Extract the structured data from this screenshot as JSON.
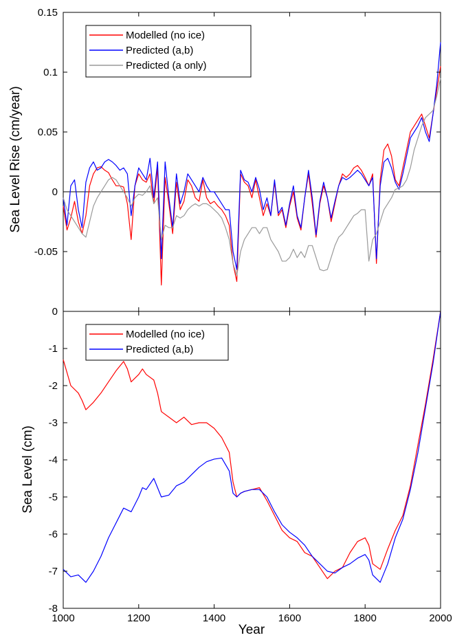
{
  "figure": {
    "xlabel": "Year",
    "x_ticks": [
      "1000",
      "1200",
      "1400",
      "1600",
      "1800",
      "2000"
    ]
  },
  "chart_data": [
    {
      "type": "line",
      "ylabel": "Sea Level Rise (cm/year)",
      "xlim": [
        1000,
        2000
      ],
      "ylim": [
        -0.1,
        0.15
      ],
      "y_ticks": [
        "-0.05",
        "0",
        "0.05",
        "0.1",
        "0.15"
      ],
      "y_tick_values": [
        -0.05,
        0,
        0.05,
        0.1,
        0.15
      ],
      "reference_line": 0,
      "legend_position": "top-left",
      "grid": false,
      "series": [
        {
          "name": "Modelled (no ice)",
          "color": "#ff0000",
          "x": [
            1000,
            1010,
            1020,
            1030,
            1040,
            1050,
            1060,
            1070,
            1080,
            1090,
            1100,
            1110,
            1120,
            1130,
            1140,
            1150,
            1160,
            1170,
            1180,
            1190,
            1200,
            1210,
            1220,
            1230,
            1240,
            1250,
            1260,
            1270,
            1280,
            1290,
            1300,
            1310,
            1320,
            1330,
            1340,
            1350,
            1360,
            1370,
            1380,
            1390,
            1400,
            1410,
            1420,
            1430,
            1440,
            1450,
            1460,
            1470,
            1480,
            1490,
            1500,
            1510,
            1520,
            1530,
            1540,
            1550,
            1560,
            1570,
            1580,
            1590,
            1600,
            1610,
            1620,
            1630,
            1640,
            1650,
            1660,
            1670,
            1680,
            1690,
            1700,
            1710,
            1720,
            1730,
            1740,
            1750,
            1760,
            1770,
            1780,
            1790,
            1800,
            1810,
            1820,
            1830,
            1840,
            1850,
            1860,
            1870,
            1880,
            1890,
            1900,
            1910,
            1920,
            1930,
            1940,
            1950,
            1960,
            1970,
            1980,
            1990,
            2000
          ],
          "values": [
            -0.012,
            -0.032,
            -0.022,
            -0.008,
            -0.025,
            -0.035,
            -0.02,
            0.005,
            0.015,
            0.02,
            0.021,
            0.018,
            0.016,
            0.01,
            0.005,
            0.005,
            0.004,
            -0.01,
            -0.04,
            0.005,
            0.015,
            0.01,
            0.008,
            0.015,
            -0.01,
            0.02,
            -0.078,
            0.012,
            -0.01,
            -0.035,
            0.008,
            -0.015,
            -0.008,
            0.01,
            0.005,
            -0.005,
            -0.008,
            0.01,
            -0.005,
            -0.01,
            -0.008,
            -0.012,
            -0.015,
            -0.02,
            -0.028,
            -0.06,
            -0.075,
            0.015,
            0.008,
            0.005,
            -0.005,
            0.01,
            -0.005,
            -0.02,
            -0.01,
            -0.02,
            0.008,
            -0.02,
            -0.015,
            -0.03,
            -0.012,
            0.0,
            -0.022,
            -0.032,
            -0.005,
            0.015,
            -0.01,
            -0.038,
            -0.01,
            0.005,
            -0.005,
            -0.025,
            -0.01,
            0.005,
            0.015,
            0.012,
            0.015,
            0.02,
            0.022,
            0.018,
            0.012,
            0.005,
            0.015,
            -0.06,
            0.01,
            0.035,
            0.04,
            0.03,
            0.01,
            0.005,
            0.02,
            0.035,
            0.05,
            0.055,
            0.06,
            0.065,
            0.055,
            0.045,
            0.065,
            0.085,
            0.105
          ]
        },
        {
          "name": "Predicted (a,b)",
          "color": "#0000ff",
          "x": [
            1000,
            1010,
            1020,
            1030,
            1040,
            1050,
            1060,
            1070,
            1080,
            1090,
            1100,
            1110,
            1120,
            1130,
            1140,
            1150,
            1160,
            1170,
            1180,
            1190,
            1200,
            1210,
            1220,
            1230,
            1240,
            1250,
            1260,
            1270,
            1280,
            1290,
            1300,
            1310,
            1320,
            1330,
            1340,
            1350,
            1360,
            1370,
            1380,
            1390,
            1400,
            1410,
            1420,
            1430,
            1440,
            1450,
            1460,
            1470,
            1480,
            1490,
            1500,
            1510,
            1520,
            1530,
            1540,
            1550,
            1560,
            1570,
            1580,
            1590,
            1600,
            1610,
            1620,
            1630,
            1640,
            1650,
            1660,
            1670,
            1680,
            1690,
            1700,
            1710,
            1720,
            1730,
            1740,
            1750,
            1760,
            1770,
            1780,
            1790,
            1800,
            1810,
            1820,
            1830,
            1840,
            1850,
            1860,
            1870,
            1880,
            1890,
            1900,
            1910,
            1920,
            1930,
            1940,
            1950,
            1960,
            1970,
            1980,
            1990,
            2000
          ],
          "values": [
            -0.005,
            -0.028,
            0.005,
            0.01,
            -0.015,
            -0.03,
            0.008,
            0.02,
            0.025,
            0.018,
            0.02,
            0.025,
            0.027,
            0.025,
            0.022,
            0.018,
            0.02,
            0.015,
            -0.02,
            0.005,
            0.02,
            0.015,
            0.01,
            0.028,
            -0.005,
            0.025,
            -0.056,
            0.025,
            -0.005,
            -0.03,
            0.015,
            -0.01,
            0.0,
            0.015,
            0.01,
            0.005,
            0.0,
            0.012,
            0.005,
            0.0,
            0.0,
            -0.005,
            -0.01,
            -0.015,
            -0.015,
            -0.05,
            -0.065,
            0.018,
            0.01,
            0.008,
            0.0,
            0.012,
            0.002,
            -0.015,
            -0.005,
            -0.02,
            0.01,
            -0.018,
            -0.013,
            -0.028,
            -0.01,
            0.005,
            -0.02,
            -0.03,
            -0.005,
            0.018,
            -0.005,
            -0.036,
            -0.008,
            0.008,
            -0.005,
            -0.022,
            -0.008,
            0.005,
            0.012,
            0.01,
            0.012,
            0.015,
            0.018,
            0.015,
            0.01,
            0.005,
            0.012,
            -0.056,
            0.005,
            0.025,
            0.028,
            0.02,
            0.008,
            0.002,
            0.015,
            0.03,
            0.045,
            0.05,
            0.055,
            0.062,
            0.05,
            0.042,
            0.065,
            0.09,
            0.125
          ]
        },
        {
          "name": "Predicted (a only)",
          "color": "#999999",
          "x": [
            1000,
            1010,
            1020,
            1030,
            1040,
            1050,
            1060,
            1070,
            1080,
            1090,
            1100,
            1110,
            1120,
            1130,
            1140,
            1150,
            1160,
            1170,
            1180,
            1190,
            1200,
            1210,
            1220,
            1230,
            1240,
            1250,
            1260,
            1270,
            1280,
            1290,
            1300,
            1310,
            1320,
            1330,
            1340,
            1350,
            1360,
            1370,
            1380,
            1390,
            1400,
            1410,
            1420,
            1430,
            1440,
            1450,
            1460,
            1470,
            1480,
            1490,
            1500,
            1510,
            1520,
            1530,
            1540,
            1550,
            1560,
            1570,
            1580,
            1590,
            1600,
            1610,
            1620,
            1630,
            1640,
            1650,
            1660,
            1670,
            1680,
            1690,
            1700,
            1710,
            1720,
            1730,
            1740,
            1750,
            1760,
            1770,
            1780,
            1790,
            1800,
            1810,
            1820,
            1830,
            1840,
            1850,
            1860,
            1870,
            1880,
            1890,
            1900,
            1910,
            1920,
            1930,
            1940,
            1950,
            1960,
            1970,
            1980,
            1990,
            2000
          ],
          "values": [
            -0.005,
            -0.015,
            -0.02,
            -0.025,
            -0.03,
            -0.035,
            -0.038,
            -0.025,
            -0.012,
            -0.005,
            0.0,
            0.005,
            0.01,
            0.012,
            0.01,
            0.005,
            0.0,
            -0.005,
            -0.012,
            -0.005,
            -0.002,
            -0.003,
            0.0,
            0.005,
            -0.01,
            -0.005,
            -0.04,
            -0.028,
            -0.03,
            -0.03,
            -0.02,
            -0.022,
            -0.02,
            -0.015,
            -0.012,
            -0.01,
            -0.012,
            -0.01,
            -0.01,
            -0.012,
            -0.015,
            -0.018,
            -0.022,
            -0.03,
            -0.04,
            -0.06,
            -0.07,
            -0.05,
            -0.04,
            -0.035,
            -0.03,
            -0.03,
            -0.035,
            -0.03,
            -0.03,
            -0.04,
            -0.045,
            -0.05,
            -0.058,
            -0.058,
            -0.055,
            -0.048,
            -0.055,
            -0.05,
            -0.055,
            -0.045,
            -0.045,
            -0.055,
            -0.065,
            -0.066,
            -0.065,
            -0.055,
            -0.045,
            -0.038,
            -0.035,
            -0.03,
            -0.025,
            -0.02,
            -0.018,
            -0.015,
            -0.015,
            -0.058,
            -0.04,
            -0.035,
            -0.025,
            -0.015,
            -0.01,
            -0.005,
            0.002,
            0.003,
            0.005,
            0.01,
            0.02,
            0.035,
            0.045,
            0.055,
            0.062,
            0.065,
            0.068,
            0.08,
            0.095
          ]
        }
      ]
    },
    {
      "type": "line",
      "ylabel": "Sea Level (cm)",
      "xlim": [
        1000,
        2000
      ],
      "ylim": [
        -8,
        0
      ],
      "y_ticks": [
        "-8",
        "-7",
        "-6",
        "-5",
        "-4",
        "-3",
        "-2",
        "-1",
        "0"
      ],
      "y_tick_values": [
        -8,
        -7,
        -6,
        -5,
        -4,
        -3,
        -2,
        -1,
        0
      ],
      "legend_position": "top-left",
      "grid": false,
      "series": [
        {
          "name": "Modelled (no ice)",
          "color": "#ff0000",
          "x": [
            1000,
            1020,
            1040,
            1050,
            1060,
            1080,
            1100,
            1120,
            1140,
            1160,
            1170,
            1180,
            1200,
            1210,
            1220,
            1240,
            1250,
            1260,
            1280,
            1300,
            1320,
            1340,
            1360,
            1380,
            1400,
            1420,
            1440,
            1450,
            1460,
            1470,
            1480,
            1500,
            1520,
            1540,
            1560,
            1580,
            1600,
            1620,
            1640,
            1660,
            1680,
            1700,
            1720,
            1740,
            1760,
            1780,
            1800,
            1810,
            1820,
            1840,
            1860,
            1880,
            1900,
            1920,
            1940,
            1960,
            1980,
            2000
          ],
          "values": [
            -1.3,
            -2.0,
            -2.2,
            -2.4,
            -2.65,
            -2.45,
            -2.2,
            -1.9,
            -1.6,
            -1.35,
            -1.55,
            -1.9,
            -1.7,
            -1.55,
            -1.7,
            -1.85,
            -2.2,
            -2.7,
            -2.85,
            -3.0,
            -2.85,
            -3.05,
            -3.0,
            -3.0,
            -3.15,
            -3.4,
            -3.8,
            -4.6,
            -5.0,
            -4.9,
            -4.85,
            -4.8,
            -4.75,
            -5.1,
            -5.5,
            -5.9,
            -6.1,
            -6.2,
            -6.5,
            -6.6,
            -6.9,
            -7.2,
            -7.0,
            -6.9,
            -6.5,
            -6.2,
            -6.1,
            -6.3,
            -6.8,
            -6.95,
            -6.4,
            -5.9,
            -5.5,
            -4.7,
            -3.6,
            -2.5,
            -1.3,
            0.0
          ]
        },
        {
          "name": "Predicted (a,b)",
          "color": "#0000ff",
          "x": [
            1000,
            1020,
            1040,
            1050,
            1060,
            1080,
            1100,
            1120,
            1140,
            1160,
            1180,
            1200,
            1210,
            1220,
            1240,
            1250,
            1260,
            1280,
            1300,
            1320,
            1340,
            1360,
            1380,
            1400,
            1420,
            1440,
            1450,
            1460,
            1470,
            1480,
            1500,
            1520,
            1540,
            1560,
            1580,
            1600,
            1620,
            1640,
            1660,
            1680,
            1700,
            1720,
            1740,
            1760,
            1780,
            1800,
            1810,
            1820,
            1840,
            1860,
            1880,
            1900,
            1920,
            1940,
            1960,
            1980,
            2000
          ],
          "values": [
            -6.95,
            -7.15,
            -7.1,
            -7.2,
            -7.3,
            -7.0,
            -6.6,
            -6.1,
            -5.7,
            -5.3,
            -5.4,
            -5.0,
            -4.75,
            -4.8,
            -4.5,
            -4.75,
            -5.0,
            -4.95,
            -4.7,
            -4.6,
            -4.4,
            -4.2,
            -4.05,
            -3.98,
            -3.95,
            -4.3,
            -4.9,
            -5.0,
            -4.9,
            -4.85,
            -4.8,
            -4.8,
            -5.0,
            -5.4,
            -5.75,
            -5.95,
            -6.1,
            -6.3,
            -6.6,
            -6.8,
            -7.0,
            -7.05,
            -6.9,
            -6.8,
            -6.65,
            -6.55,
            -6.7,
            -7.1,
            -7.3,
            -6.8,
            -6.1,
            -5.6,
            -4.8,
            -3.8,
            -2.6,
            -1.4,
            0.0
          ]
        }
      ]
    }
  ]
}
